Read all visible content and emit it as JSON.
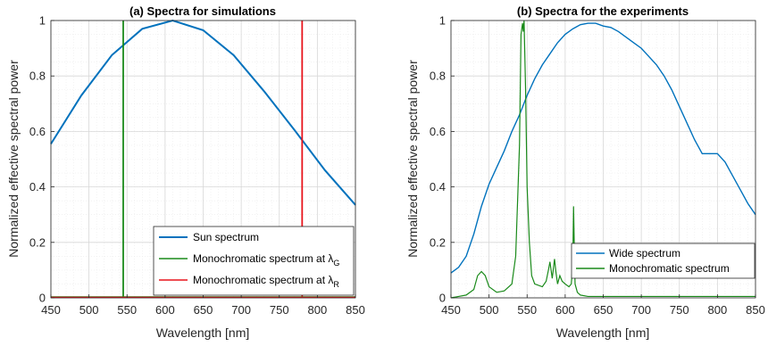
{
  "colors": {
    "blue": "#0072bd",
    "green": "#1a8a1a",
    "red": "#e8141c",
    "grid": "#d8d8d8",
    "minor": "#ebebeb",
    "axis": "#262626"
  },
  "chart_data": [
    {
      "type": "line",
      "title": "(a) Spectra for simulations",
      "xlabel": "Wavelength [nm]",
      "ylabel": "Normalized effective spectral power",
      "xlim": [
        450,
        850
      ],
      "ylim": [
        0,
        1
      ],
      "xticks": [
        "450",
        "500",
        "550",
        "600",
        "650",
        "700",
        "750",
        "800",
        "850"
      ],
      "yticks": [
        "0",
        "0.2",
        "0.4",
        "0.6",
        "0.8",
        "1"
      ],
      "grid": true,
      "legend_position": "bottom-right",
      "series": [
        {
          "name": "Sun spectrum",
          "style": "line",
          "x": [
            450,
            490,
            530,
            570,
            610,
            650,
            690,
            730,
            770,
            810,
            850
          ],
          "y": [
            0.555,
            0.73,
            0.875,
            0.97,
            1.0,
            0.965,
            0.875,
            0.745,
            0.605,
            0.46,
            0.335
          ]
        },
        {
          "name": "Monochromatic spectrum at λ",
          "subscript": "G",
          "style": "vline",
          "x": 545,
          "floor": 0
        },
        {
          "name": "Monochromatic spectrum at λ",
          "subscript": "R",
          "style": "vline",
          "x": 780,
          "floor": 0
        }
      ]
    },
    {
      "type": "line",
      "title": "(b) Spectra for the experiments",
      "xlabel": "Wavelength [nm]",
      "ylabel": "Normalized effective spectral power",
      "xlim": [
        450,
        850
      ],
      "ylim": [
        0,
        1
      ],
      "xticks": [
        "450",
        "500",
        "550",
        "600",
        "650",
        "700",
        "750",
        "800",
        "850"
      ],
      "yticks": [
        "0",
        "0.2",
        "0.4",
        "0.6",
        "0.8",
        "1"
      ],
      "grid": true,
      "legend_position": "bottom-right",
      "series": [
        {
          "name": "Wide spectrum",
          "x": [
            450,
            460,
            470,
            480,
            490,
            500,
            510,
            520,
            530,
            540,
            550,
            560,
            570,
            580,
            590,
            600,
            610,
            620,
            630,
            640,
            650,
            660,
            670,
            680,
            690,
            700,
            710,
            720,
            730,
            740,
            750,
            760,
            770,
            780,
            790,
            800,
            810,
            820,
            830,
            840,
            850
          ],
          "y": [
            0.09,
            0.11,
            0.15,
            0.23,
            0.33,
            0.41,
            0.47,
            0.53,
            0.6,
            0.66,
            0.73,
            0.79,
            0.84,
            0.88,
            0.92,
            0.95,
            0.97,
            0.985,
            0.99,
            0.99,
            0.98,
            0.975,
            0.96,
            0.94,
            0.92,
            0.9,
            0.87,
            0.84,
            0.8,
            0.75,
            0.69,
            0.63,
            0.57,
            0.52,
            0.52,
            0.52,
            0.49,
            0.44,
            0.39,
            0.34,
            0.3
          ]
        },
        {
          "name": "Monochromatic spectrum",
          "x": [
            450,
            460,
            470,
            480,
            485,
            490,
            495,
            500,
            510,
            520,
            530,
            535,
            540,
            542,
            544,
            545,
            546,
            548,
            550,
            553,
            556,
            560,
            570,
            575,
            578,
            580,
            583,
            586,
            588,
            590,
            593,
            596,
            600,
            605,
            608,
            610,
            611,
            612,
            613,
            614,
            616,
            620,
            630,
            650,
            700,
            750,
            800,
            850
          ],
          "y": [
            0.0,
            0.005,
            0.01,
            0.03,
            0.08,
            0.095,
            0.08,
            0.04,
            0.02,
            0.025,
            0.05,
            0.15,
            0.55,
            0.95,
            0.99,
            0.96,
            1.0,
            0.75,
            0.4,
            0.2,
            0.08,
            0.05,
            0.04,
            0.06,
            0.1,
            0.13,
            0.07,
            0.14,
            0.09,
            0.05,
            0.08,
            0.06,
            0.05,
            0.04,
            0.05,
            0.12,
            0.33,
            0.18,
            0.05,
            0.04,
            0.02,
            0.01,
            0.005,
            0.005,
            0.005,
            0.005,
            0.005,
            0.005
          ]
        }
      ]
    }
  ]
}
